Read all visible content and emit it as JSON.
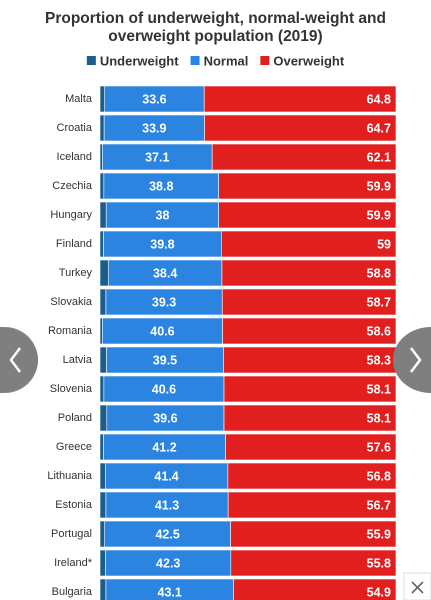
{
  "chart_data": {
    "type": "stacked-bar-horizontal",
    "title": "Proportion of underweight, normal-weight and overweight population (2019)",
    "categories": [
      "Malta",
      "Croatia",
      "Iceland",
      "Czechia",
      "Hungary",
      "Finland",
      "Turkey",
      "Slovakia",
      "Romania",
      "Latvia",
      "Slovenia",
      "Poland",
      "Greece",
      "Lithuania",
      "Estonia",
      "Portugal",
      "Ireland*",
      "Bulgaria"
    ],
    "xlim": [
      0,
      100
    ],
    "series": [
      {
        "name": "Underweight",
        "color": "#1b5e8c",
        "values": [
          1.6,
          1.4,
          0.8,
          1.3,
          2.1,
          1.2,
          2.8,
          2.0,
          0.8,
          2.2,
          1.3,
          2.3,
          1.2,
          1.8,
          2.0,
          1.6,
          1.9,
          2.0
        ]
      },
      {
        "name": "Normal",
        "color": "#2a84e0",
        "values": [
          33.6,
          33.9,
          37.1,
          38.8,
          38,
          39.8,
          38.4,
          39.3,
          40.6,
          39.5,
          40.6,
          39.6,
          41.2,
          41.4,
          41.3,
          42.5,
          42.3,
          43.1
        ]
      },
      {
        "name": "Overweight",
        "color": "#e21f1f",
        "values": [
          64.8,
          64.7,
          62.1,
          59.9,
          59.9,
          59,
          58.8,
          58.7,
          58.6,
          58.3,
          58.1,
          58.1,
          57.6,
          56.8,
          56.7,
          55.9,
          55.8,
          54.9
        ]
      }
    ]
  }
}
